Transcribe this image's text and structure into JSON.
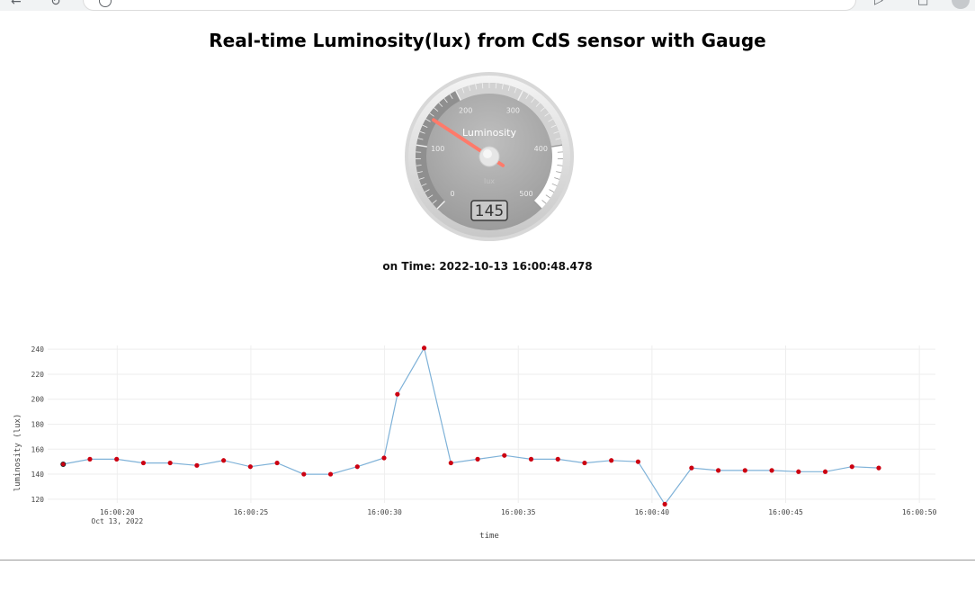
{
  "page": {
    "title": "Real-time Luminosity(lux) from CdS sensor with Gauge",
    "time_prefix": "on Time:",
    "time_value": "2022-10-13 16:00:48.478"
  },
  "gauge": {
    "label": "Luminosity",
    "unit": "lux",
    "min": 0,
    "max": 500,
    "value": 145,
    "display": "145",
    "ticks": [
      "0",
      "100",
      "200",
      "300",
      "400",
      "500"
    ]
  },
  "colors": {
    "line": "#7fb2d8",
    "marker": "#cc0011",
    "grid": "#eeeeee",
    "needle": "#ff7a6a"
  },
  "chart_data": {
    "type": "line",
    "title": "",
    "xlabel": "time",
    "ylabel": "luminosity (lux)",
    "xlim": [
      17.4,
      50.6
    ],
    "ylim": [
      117,
      243
    ],
    "x_ticks": [
      {
        "pos": 20,
        "label": "16:00:20",
        "sub": "Oct 13, 2022"
      },
      {
        "pos": 25,
        "label": "16:00:25",
        "sub": ""
      },
      {
        "pos": 30,
        "label": "16:00:30",
        "sub": ""
      },
      {
        "pos": 35,
        "label": "16:00:35",
        "sub": ""
      },
      {
        "pos": 40,
        "label": "16:00:40",
        "sub": ""
      },
      {
        "pos": 45,
        "label": "16:00:45",
        "sub": ""
      },
      {
        "pos": 50,
        "label": "16:00:50",
        "sub": ""
      }
    ],
    "y_ticks": [
      {
        "pos": 120,
        "label": "120"
      },
      {
        "pos": 140,
        "label": "140"
      },
      {
        "pos": 160,
        "label": "160"
      },
      {
        "pos": 180,
        "label": "180"
      },
      {
        "pos": 200,
        "label": "200"
      },
      {
        "pos": 220,
        "label": "220"
      },
      {
        "pos": 240,
        "label": "240"
      }
    ],
    "series": [
      {
        "name": "luminosity",
        "x": [
          17.98,
          18.98,
          19.98,
          20.98,
          21.98,
          22.98,
          23.98,
          24.98,
          25.98,
          26.98,
          27.98,
          28.98,
          29.98,
          30.48,
          31.48,
          32.48,
          33.48,
          34.48,
          35.48,
          36.48,
          37.48,
          38.48,
          39.48,
          40.48,
          41.48,
          42.48,
          43.48,
          44.48,
          45.48,
          46.48,
          47.48,
          48.48
        ],
        "values": [
          148,
          152,
          152,
          149,
          149,
          147,
          151,
          146,
          149,
          140,
          140,
          146,
          153,
          204,
          241,
          149,
          152,
          155,
          152,
          152,
          149,
          151,
          150,
          116,
          145,
          143,
          143,
          143,
          142,
          142,
          146,
          145
        ]
      }
    ]
  }
}
